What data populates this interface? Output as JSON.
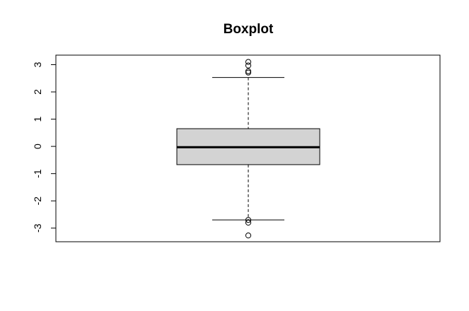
{
  "chart_data": {
    "type": "boxplot",
    "title": "Boxplot",
    "xlabel": "",
    "ylabel": "",
    "ylim": [
      -3.5,
      3.35
    ],
    "y_ticks": [
      3,
      2,
      1,
      0,
      -1,
      -2,
      -3
    ],
    "y_tick_labels": [
      "3",
      "2",
      "1",
      "0",
      "-1",
      "-2",
      "-3"
    ],
    "box": {
      "whisker_low": -2.7,
      "q1": -0.67,
      "median": -0.03,
      "q3": 0.65,
      "whisker_high": 2.53
    },
    "outliers": [
      3.1,
      2.97,
      2.76,
      2.71,
      -2.7,
      -2.8,
      -3.27
    ],
    "colors": {
      "box_fill": "#d3d3d3",
      "stroke": "#000000"
    },
    "grid": false
  }
}
